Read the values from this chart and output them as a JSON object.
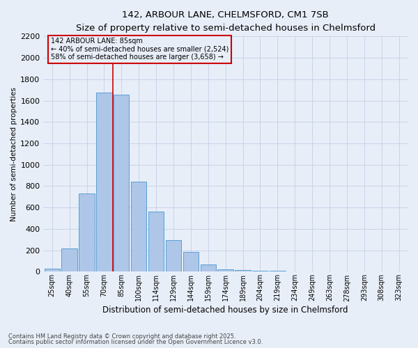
{
  "title1": "142, ARBOUR LANE, CHELMSFORD, CM1 7SB",
  "title2": "Size of property relative to semi-detached houses in Chelmsford",
  "xlabel": "Distribution of semi-detached houses by size in Chelmsford",
  "ylabel": "Number of semi-detached properties",
  "categories": [
    "25sqm",
    "40sqm",
    "55sqm",
    "70sqm",
    "85sqm",
    "100sqm",
    "114sqm",
    "129sqm",
    "144sqm",
    "159sqm",
    "174sqm",
    "189sqm",
    "204sqm",
    "219sqm",
    "234sqm",
    "249sqm",
    "263sqm",
    "278sqm",
    "293sqm",
    "308sqm",
    "323sqm"
  ],
  "values": [
    30,
    220,
    730,
    1675,
    1655,
    840,
    560,
    295,
    185,
    65,
    25,
    15,
    10,
    8,
    5,
    3,
    2,
    2,
    1,
    1,
    1
  ],
  "bar_color": "#aec6e8",
  "bar_edge_color": "#5a9fd4",
  "highlight_line_index": 4,
  "highlight_line_color": "#cc0000",
  "annotation_title": "142 ARBOUR LANE: 85sqm",
  "annotation_line1": "← 40% of semi-detached houses are smaller (2,524)",
  "annotation_line2": "58% of semi-detached houses are larger (3,658) →",
  "annotation_box_color": "#cc0000",
  "ylim": [
    0,
    2200
  ],
  "yticks": [
    0,
    200,
    400,
    600,
    800,
    1000,
    1200,
    1400,
    1600,
    1800,
    2000,
    2200
  ],
  "grid_color": "#c8d4e8",
  "background_color": "#e8eef8",
  "footnote1": "Contains HM Land Registry data © Crown copyright and database right 2025.",
  "footnote2": "Contains public sector information licensed under the Open Government Licence v3.0."
}
